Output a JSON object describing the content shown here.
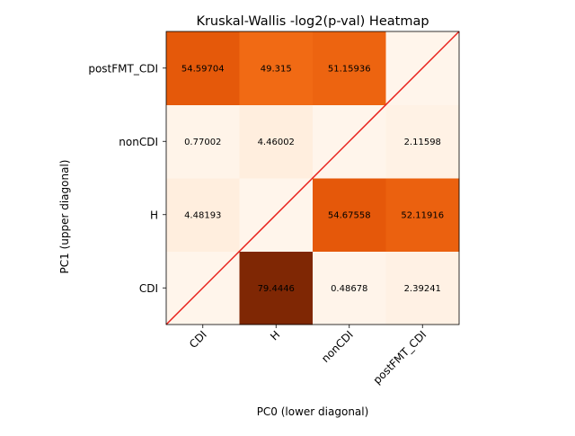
{
  "chart_data": {
    "type": "heatmap",
    "title": "Kruskal-Wallis -log2(p-val) Heatmap",
    "xlabel": "PC0 (lower diagonal)",
    "ylabel": "PC1 (upper diagonal)",
    "x_categories": [
      "CDI",
      "H",
      "nonCDI",
      "postFMT_CDI"
    ],
    "y_categories": [
      "CDI",
      "H",
      "nonCDI",
      "postFMT_CDI"
    ],
    "colormap": "Oranges",
    "color_range": [
      0,
      79.4446
    ],
    "diagonal_line_color": "#e8201a",
    "matrix": [
      [
        null,
        79.4446,
        0.48678,
        2.39241
      ],
      [
        4.48193,
        null,
        54.67558,
        52.11916
      ],
      [
        0.77002,
        4.46002,
        null,
        2.11598
      ],
      [
        54.59704,
        49.315,
        51.15936,
        null
      ]
    ],
    "cell_labels": [
      [
        "",
        "79.4446",
        "0.48678",
        "2.39241"
      ],
      [
        "4.48193",
        "",
        "54.67558",
        "52.11916"
      ],
      [
        "0.77002",
        "4.46002",
        "",
        "2.11598"
      ],
      [
        "54.59704",
        "49.315",
        "51.15936",
        ""
      ]
    ]
  }
}
